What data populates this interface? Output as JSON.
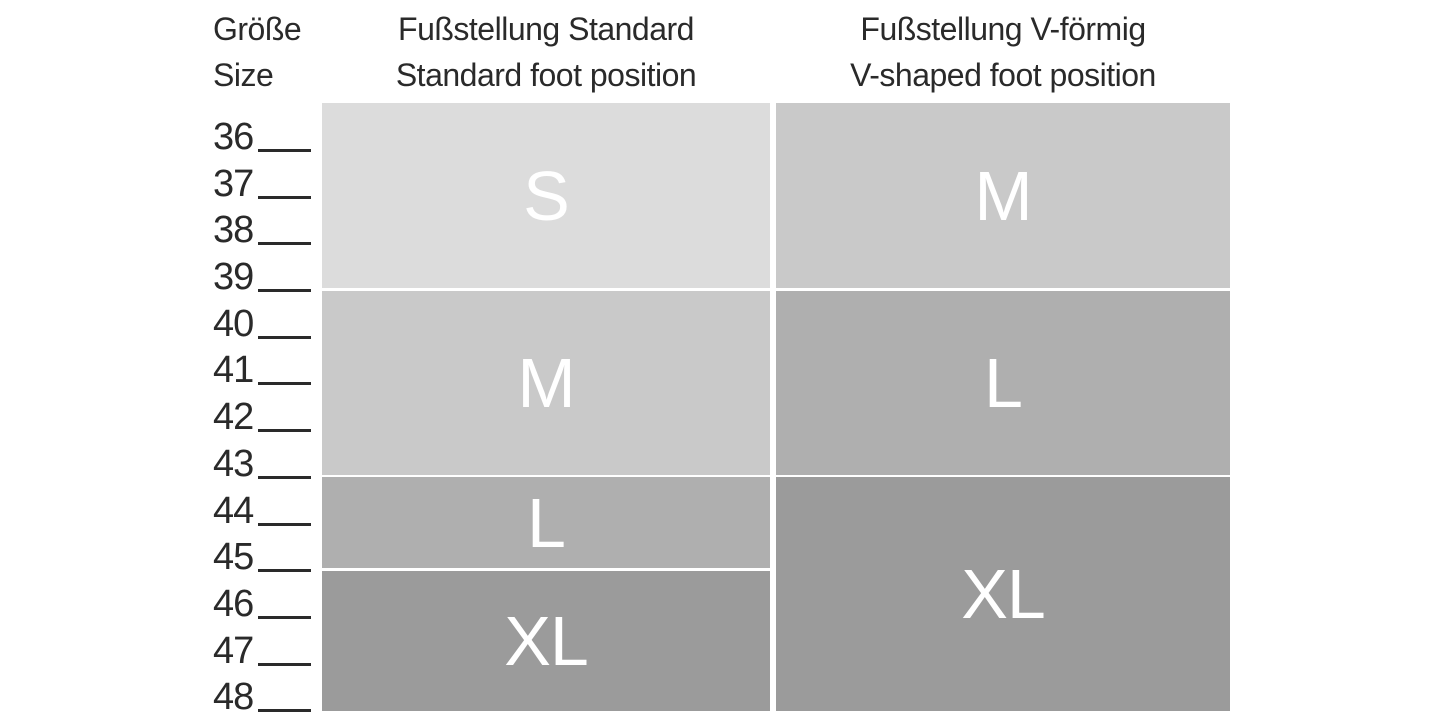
{
  "page": {
    "background_color": "#ffffff",
    "text_color": "#2a2a2a",
    "block_label_color": "#ffffff"
  },
  "size_column": {
    "header_de": "Größe",
    "header_en": "Size",
    "sizes": [
      "36",
      "37",
      "38",
      "39",
      "40",
      "41",
      "42",
      "43",
      "44",
      "45",
      "46",
      "47",
      "48"
    ]
  },
  "columns": [
    {
      "header_de": "Fußstellung Standard",
      "header_en": "Standard foot position",
      "blocks": [
        {
          "label": "S",
          "size_range": "36–39",
          "color": "#dcdcdc"
        },
        {
          "label": "M",
          "size_range": "40–43",
          "color": "#c9c9c9"
        },
        {
          "label": "L",
          "size_range": "44–45",
          "color": "#afafaf"
        },
        {
          "label": "XL",
          "size_range": "46–48",
          "color": "#9b9b9b"
        }
      ]
    },
    {
      "header_de": "Fußstellung V-förmig",
      "header_en": "V-shaped foot position",
      "blocks": [
        {
          "label": "M",
          "size_range": "36–39",
          "color": "#c9c9c9"
        },
        {
          "label": "L",
          "size_range": "40–43",
          "color": "#afafaf"
        },
        {
          "label": "XL",
          "size_range": "44–48",
          "color": "#9b9b9b"
        }
      ]
    }
  ],
  "chart_data": {
    "type": "table",
    "row_header": {
      "de": "Größe",
      "en": "Size"
    },
    "rows": [
      36,
      37,
      38,
      39,
      40,
      41,
      42,
      43,
      44,
      45,
      46,
      47,
      48
    ],
    "columns": [
      {
        "name_de": "Fußstellung Standard",
        "name_en": "Standard foot position",
        "groups": [
          {
            "size_label": "S",
            "shoe_sizes": [
              36,
              37,
              38,
              39
            ]
          },
          {
            "size_label": "M",
            "shoe_sizes": [
              40,
              41,
              42,
              43
            ]
          },
          {
            "size_label": "L",
            "shoe_sizes": [
              44,
              45
            ]
          },
          {
            "size_label": "XL",
            "shoe_sizes": [
              46,
              47,
              48
            ]
          }
        ]
      },
      {
        "name_de": "Fußstellung V-förmig",
        "name_en": "V-shaped foot position",
        "groups": [
          {
            "size_label": "M",
            "shoe_sizes": [
              36,
              37,
              38,
              39
            ]
          },
          {
            "size_label": "L",
            "shoe_sizes": [
              40,
              41,
              42,
              43
            ]
          },
          {
            "size_label": "XL",
            "shoe_sizes": [
              44,
              45,
              46,
              47,
              48
            ]
          }
        ]
      }
    ],
    "shade_by_size_label": {
      "S": "#dcdcdc",
      "M": "#c9c9c9",
      "L": "#afafaf",
      "XL": "#9b9b9b"
    },
    "legend_position": "none",
    "grid": false
  }
}
